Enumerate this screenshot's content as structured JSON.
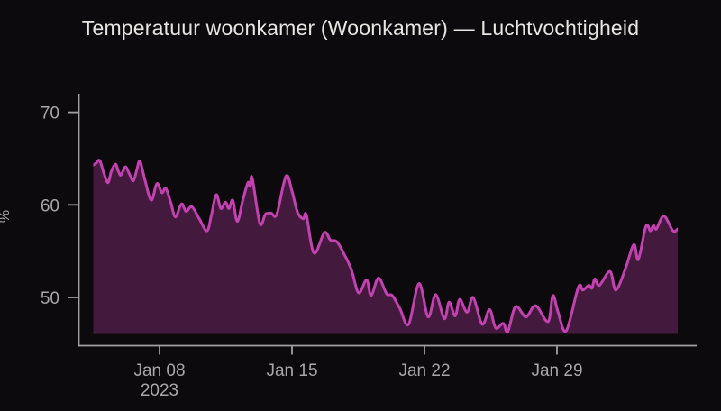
{
  "title": "Temperatuur woonkamer (Woonkamer) — Luchtvochtigheid",
  "colors": {
    "background": "#0c0a0c",
    "line": "#c341b1",
    "fill": "rgba(195,65,177,0.30)",
    "axis": "#a0a0a0",
    "tick_text": "#a8a8a8",
    "title_text": "#e8e6e3"
  },
  "chart_data": {
    "type": "area",
    "title": "Temperatuur woonkamer (Woonkamer) — Luchtvochtigheid",
    "xlabel": "",
    "ylabel": "%",
    "ylim": [
      46.05,
      72.0
    ],
    "grid": false,
    "legend": "none",
    "yticks": [
      {
        "value": 70,
        "label": "70"
      },
      {
        "value": 60,
        "label": "60"
      },
      {
        "value": 50,
        "label": "50"
      }
    ],
    "x_start": "2023-01-04 12:00",
    "x_end": "2023-02-04 09:00",
    "x_unit": "days_since_x_start",
    "xticks": [
      {
        "day": 3.5,
        "label": "Jan 08",
        "sublabel": "2023"
      },
      {
        "day": 10.5,
        "label": "Jan 15",
        "sublabel": ""
      },
      {
        "day": 17.5,
        "label": "Jan 22",
        "sublabel": ""
      },
      {
        "day": 24.5,
        "label": "Jan 29",
        "sublabel": ""
      }
    ],
    "series": [
      {
        "name": "Luchtvochtigheid",
        "unit": "%",
        "points": [
          [
            0,
            64.3
          ],
          [
            0.15,
            64.5
          ],
          [
            0.34,
            64.8
          ],
          [
            0.55,
            63.5
          ],
          [
            0.77,
            62.4
          ],
          [
            0.95,
            63.6
          ],
          [
            1.17,
            64.4
          ],
          [
            1.31,
            63.7
          ],
          [
            1.45,
            63.2
          ],
          [
            1.58,
            63.7
          ],
          [
            1.72,
            64.1
          ],
          [
            1.92,
            63.3
          ],
          [
            2.12,
            62.6
          ],
          [
            2.3,
            63.8
          ],
          [
            2.47,
            64.7
          ],
          [
            2.75,
            62.5
          ],
          [
            3.07,
            60.5
          ],
          [
            3.36,
            62.3
          ],
          [
            3.63,
            61.3
          ],
          [
            3.83,
            61.8
          ],
          [
            4.1,
            60.2
          ],
          [
            4.34,
            58.7
          ],
          [
            4.66,
            60.1
          ],
          [
            4.9,
            59.3
          ],
          [
            5.21,
            59.8
          ],
          [
            5.6,
            58.5
          ],
          [
            6.01,
            57.2
          ],
          [
            6.25,
            59.0
          ],
          [
            6.5,
            61.1
          ],
          [
            6.74,
            59.6
          ],
          [
            6.98,
            60.3
          ],
          [
            7.17,
            59.6
          ],
          [
            7.37,
            60.5
          ],
          [
            7.61,
            58.2
          ],
          [
            7.9,
            60.5
          ],
          [
            8.17,
            62.4
          ],
          [
            8.29,
            62.0
          ],
          [
            8.4,
            62.9
          ],
          [
            8.8,
            58.0
          ],
          [
            9.1,
            59.0
          ],
          [
            9.4,
            59.1
          ],
          [
            9.7,
            59.0
          ],
          [
            10.18,
            63.1
          ],
          [
            10.5,
            61.5
          ],
          [
            10.79,
            59.2
          ],
          [
            11.1,
            58.5
          ],
          [
            11.26,
            58.9
          ],
          [
            11.66,
            54.8
          ],
          [
            12.21,
            57.0
          ],
          [
            12.53,
            56.2
          ],
          [
            12.88,
            56.0
          ],
          [
            13.3,
            54.5
          ],
          [
            13.64,
            53.0
          ],
          [
            14.02,
            50.5
          ],
          [
            14.44,
            51.9
          ],
          [
            14.68,
            50.2
          ],
          [
            15.07,
            52.1
          ],
          [
            15.5,
            50.4
          ],
          [
            15.8,
            50.2
          ],
          [
            16.2,
            48.8
          ],
          [
            16.66,
            47.1
          ],
          [
            17.21,
            51.5
          ],
          [
            17.69,
            47.9
          ],
          [
            18.09,
            50.3
          ],
          [
            18.55,
            47.7
          ],
          [
            18.8,
            49.5
          ],
          [
            19.12,
            48.0
          ],
          [
            19.36,
            49.8
          ],
          [
            19.75,
            48.4
          ],
          [
            20.07,
            50.0
          ],
          [
            20.55,
            47.1
          ],
          [
            20.94,
            48.7
          ],
          [
            21.26,
            46.7
          ],
          [
            21.66,
            47.2
          ],
          [
            21.9,
            46.3
          ],
          [
            22.31,
            49.0
          ],
          [
            22.85,
            47.9
          ],
          [
            23.25,
            49.0
          ],
          [
            23.49,
            48.9
          ],
          [
            24.04,
            47.4
          ],
          [
            24.28,
            50.2
          ],
          [
            24.56,
            48.4
          ],
          [
            24.99,
            46.4
          ],
          [
            25.63,
            51.1
          ],
          [
            25.87,
            50.8
          ],
          [
            26.18,
            51.3
          ],
          [
            26.35,
            51.0
          ],
          [
            26.5,
            52.0
          ],
          [
            26.74,
            51.3
          ],
          [
            27.3,
            52.8
          ],
          [
            27.61,
            50.8
          ],
          [
            28.1,
            53.0
          ],
          [
            28.56,
            55.7
          ],
          [
            28.8,
            54.1
          ],
          [
            29.2,
            57.7
          ],
          [
            29.44,
            57.2
          ],
          [
            29.6,
            57.8
          ],
          [
            29.75,
            57.4
          ],
          [
            30.15,
            58.8
          ],
          [
            30.63,
            57.2
          ],
          [
            30.88,
            57.4
          ]
        ]
      }
    ]
  }
}
